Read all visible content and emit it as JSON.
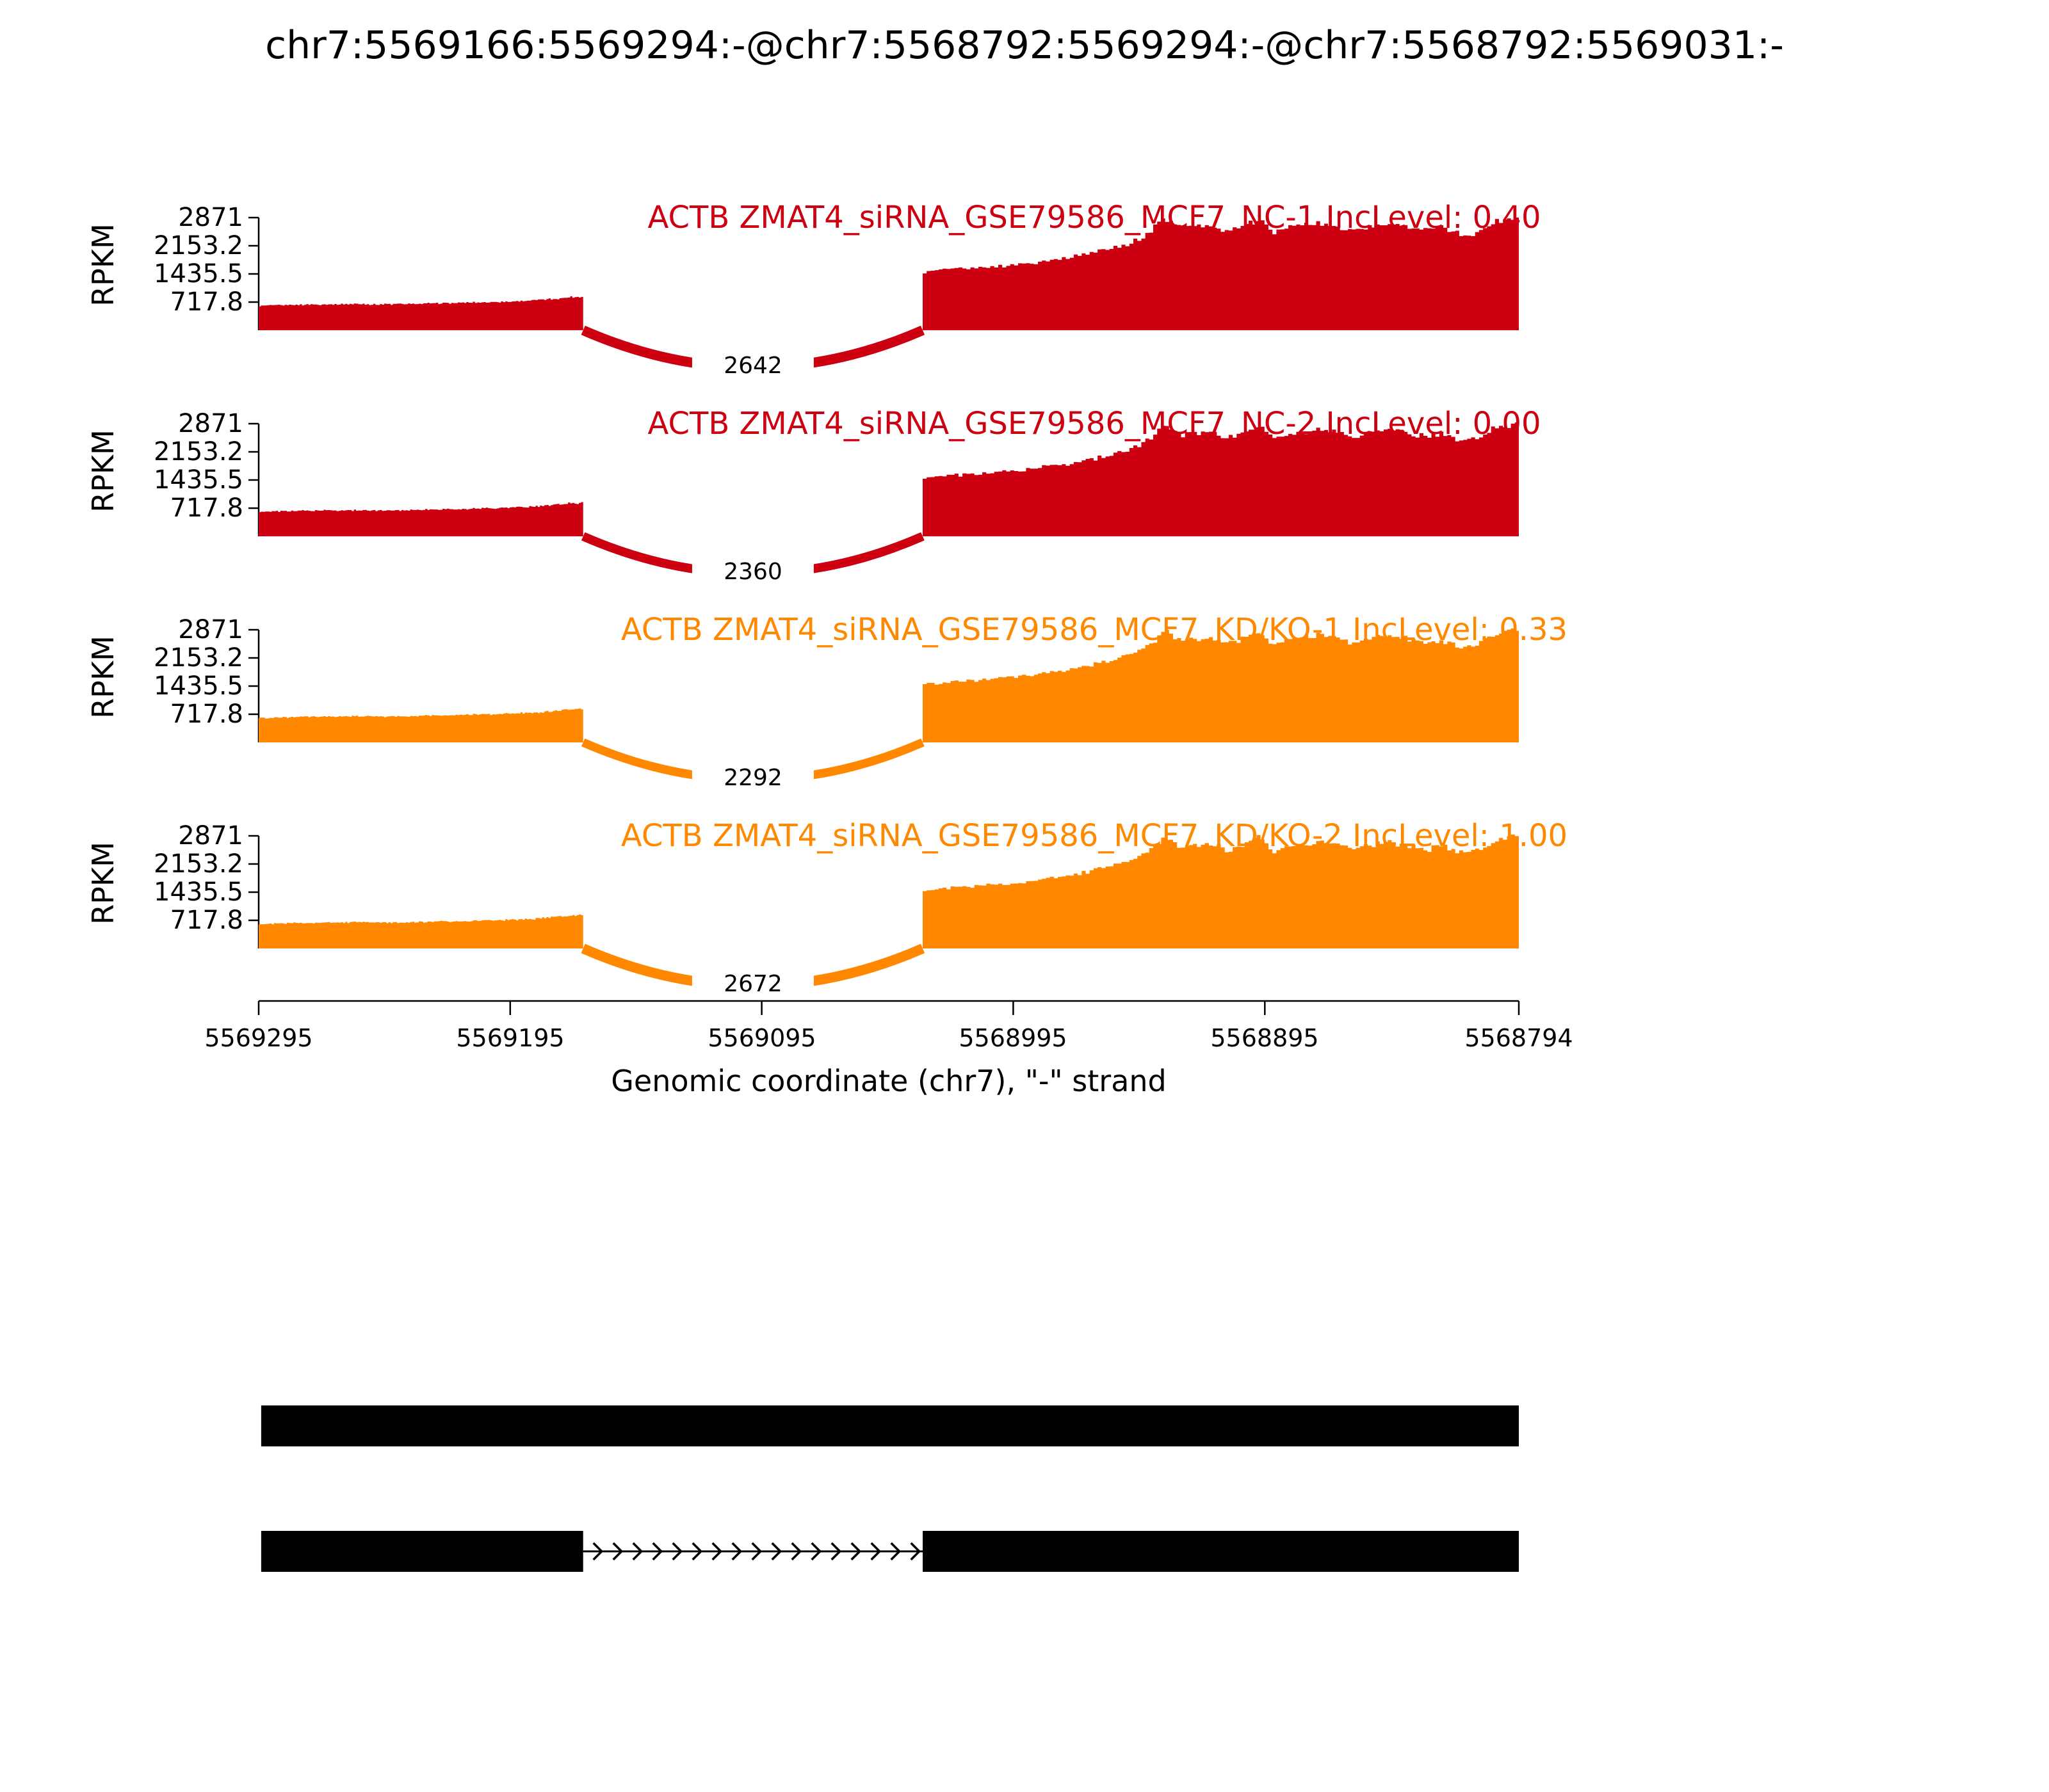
{
  "chart_data": {
    "type": "area",
    "subtype": "sashimi-plot",
    "title": "chr7:5569166:5569294:-@chr7:5568792:5569294:-@chr7:5568792:5569031:-",
    "region": {
      "chrom": "chr7",
      "start": 5569295,
      "end": 5568794,
      "strand": "-"
    },
    "x_axis": {
      "label": "Genomic coordinate (chr7), \"-\" strand",
      "tick_labels": [
        "5569295",
        "5569195",
        "5569095",
        "5568995",
        "5568895",
        "5568794"
      ],
      "tick_values": [
        5569295,
        5569195,
        5569095,
        5568995,
        5568895,
        5568794
      ]
    },
    "y_axis": {
      "label": "RPKM",
      "tick_labels": [
        "2871",
        "2153.2",
        "1435.5",
        "717.8"
      ],
      "tick_values": [
        2871,
        2153.2,
        1435.5,
        717.8
      ],
      "max": 2871
    },
    "tracks": [
      {
        "title": "ACTB ZMAT4_siRNA_GSE79586_MCF7_NC-1 IncLevel: 0.40",
        "color": "#CC0011",
        "inc_level": 0.4,
        "junction": {
          "from": 5569166,
          "to": 5569031,
          "reads": 2642
        }
      },
      {
        "title": "ACTB ZMAT4_siRNA_GSE79586_MCF7_NC-2 IncLevel: 0.00",
        "color": "#CC0011",
        "inc_level": 0.0,
        "junction": {
          "from": 5569166,
          "to": 5569031,
          "reads": 2360
        }
      },
      {
        "title": "ACTB ZMAT4_siRNA_GSE79586_MCF7_KD/KO-1 IncLevel: 0.33",
        "color": "#FF8800",
        "inc_level": 0.33,
        "junction": {
          "from": 5569166,
          "to": 5569031,
          "reads": 2292
        }
      },
      {
        "title": "ACTB ZMAT4_siRNA_GSE79586_MCF7_KD/KO-2 IncLevel: 1.00",
        "color": "#FF8800",
        "inc_level": 1.0,
        "junction": {
          "from": 5569166,
          "to": 5569031,
          "reads": 2672
        }
      }
    ],
    "coverage_profile": {
      "units": "RPKM vs fraction of plotted region (5569295 -> 5568794)",
      "left_exon": [
        [
          0.0,
          620
        ],
        [
          0.02,
          640
        ],
        [
          0.04,
          655
        ],
        [
          0.06,
          660
        ],
        [
          0.08,
          668
        ],
        [
          0.1,
          660
        ],
        [
          0.12,
          670
        ],
        [
          0.14,
          685
        ],
        [
          0.16,
          695
        ],
        [
          0.18,
          715
        ],
        [
          0.2,
          730
        ],
        [
          0.22,
          760
        ],
        [
          0.235,
          800
        ],
        [
          0.25,
          845
        ],
        [
          0.2575,
          850
        ]
      ],
      "right_exon": [
        [
          0.527,
          1470
        ],
        [
          0.54,
          1520
        ],
        [
          0.555,
          1560
        ],
        [
          0.57,
          1585
        ],
        [
          0.585,
          1625
        ],
        [
          0.6,
          1665
        ],
        [
          0.615,
          1720
        ],
        [
          0.63,
          1790
        ],
        [
          0.645,
          1860
        ],
        [
          0.66,
          1960
        ],
        [
          0.675,
          2060
        ],
        [
          0.69,
          2200
        ],
        [
          0.7,
          2330
        ],
        [
          0.71,
          2520
        ],
        [
          0.717,
          2760
        ],
        [
          0.722,
          2850
        ],
        [
          0.728,
          2680
        ],
        [
          0.735,
          2600
        ],
        [
          0.742,
          2700
        ],
        [
          0.75,
          2620
        ],
        [
          0.758,
          2690
        ],
        [
          0.765,
          2560
        ],
        [
          0.772,
          2510
        ],
        [
          0.78,
          2600
        ],
        [
          0.788,
          2720
        ],
        [
          0.795,
          2820
        ],
        [
          0.8,
          2700
        ],
        [
          0.806,
          2480
        ],
        [
          0.812,
          2560
        ],
        [
          0.82,
          2620
        ],
        [
          0.83,
          2670
        ],
        [
          0.84,
          2700
        ],
        [
          0.85,
          2720
        ],
        [
          0.86,
          2610
        ],
        [
          0.87,
          2560
        ],
        [
          0.88,
          2630
        ],
        [
          0.89,
          2670
        ],
        [
          0.9,
          2710
        ],
        [
          0.91,
          2650
        ],
        [
          0.92,
          2590
        ],
        [
          0.93,
          2540
        ],
        [
          0.94,
          2630
        ],
        [
          0.95,
          2490
        ],
        [
          0.96,
          2420
        ],
        [
          0.97,
          2520
        ],
        [
          0.98,
          2700
        ],
        [
          0.99,
          2830
        ],
        [
          1.0,
          2871
        ]
      ]
    },
    "transcripts": [
      {
        "exons": [
          [
            5569294,
            5568792
          ]
        ]
      },
      {
        "exons": [
          [
            5569294,
            5569166
          ],
          [
            5569031,
            5568792
          ]
        ]
      }
    ]
  }
}
